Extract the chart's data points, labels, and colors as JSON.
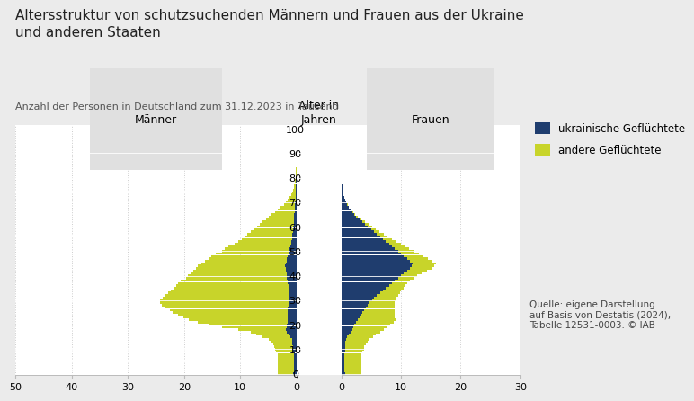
{
  "title": "Altersstruktur von schutzsuchenden Männern und Frauen aus der Ukraine\nund anderen Staaten",
  "subtitle": "Anzahl der Personen in Deutschland zum 31.12.2023 in Tausend",
  "source": "Quelle: eigene Darstellung\nauf Basis von Destatis (2024),\nTabelle 12531-0003. © IAB",
  "legend_ukraine": "ukrainische Geflüchtete",
  "legend_other": "andere Geflüchtete",
  "color_ukraine": "#1f3d6e",
  "color_other": "#c8d42a",
  "label_men": "Männer",
  "label_women": "Frauen",
  "label_age_axis": "Alter in\nJahren",
  "bg_color": "#ebebeb",
  "plot_bg": "#ffffff",
  "ages": [
    0,
    1,
    2,
    3,
    4,
    5,
    6,
    7,
    8,
    9,
    10,
    11,
    12,
    13,
    14,
    15,
    16,
    17,
    18,
    19,
    20,
    21,
    22,
    23,
    24,
    25,
    26,
    27,
    28,
    29,
    30,
    31,
    32,
    33,
    34,
    35,
    36,
    37,
    38,
    39,
    40,
    41,
    42,
    43,
    44,
    45,
    46,
    47,
    48,
    49,
    50,
    51,
    52,
    53,
    54,
    55,
    56,
    57,
    58,
    59,
    60,
    61,
    62,
    63,
    64,
    65,
    66,
    67,
    68,
    69,
    70,
    71,
    72,
    73,
    74,
    75,
    76,
    77,
    78,
    79,
    80,
    81,
    82,
    83,
    84,
    85,
    86,
    87,
    88,
    89,
    90,
    91,
    92,
    93,
    94,
    95,
    96,
    97,
    98,
    99,
    100
  ],
  "men_ukraine": [
    0.6,
    0.5,
    0.5,
    0.5,
    0.5,
    0.5,
    0.5,
    0.5,
    0.5,
    0.6,
    0.6,
    0.6,
    0.7,
    0.7,
    0.8,
    1.1,
    1.4,
    1.7,
    1.9,
    1.8,
    1.7,
    1.6,
    1.6,
    1.6,
    1.6,
    1.5,
    1.5,
    1.5,
    1.4,
    1.3,
    1.3,
    1.3,
    1.3,
    1.3,
    1.3,
    1.3,
    1.4,
    1.5,
    1.6,
    1.7,
    1.8,
    1.8,
    1.9,
    1.9,
    2.0,
    1.9,
    1.8,
    1.7,
    1.6,
    1.4,
    1.3,
    1.2,
    1.1,
    1.0,
    0.9,
    0.8,
    0.75,
    0.7,
    0.65,
    0.6,
    0.55,
    0.5,
    0.48,
    0.45,
    0.4,
    0.38,
    0.35,
    0.3,
    0.28,
    0.25,
    0.22,
    0.2,
    0.18,
    0.15,
    0.13,
    0.11,
    0.1,
    0.08,
    0.07,
    0.06,
    0.05,
    0.04,
    0.03,
    0.025,
    0.02,
    0.015,
    0.01,
    0.008,
    0.005,
    0.003,
    0.002,
    0.001,
    0.001,
    0.001,
    0.001,
    0.001,
    0.001,
    0.001,
    0.001,
    0.001,
    0.001
  ],
  "men_other": [
    2.8,
    2.8,
    2.8,
    2.9,
    2.9,
    2.9,
    2.9,
    2.9,
    2.9,
    3.0,
    3.2,
    3.3,
    3.5,
    3.8,
    4.2,
    5.0,
    5.8,
    6.5,
    8.5,
    11.5,
    14.0,
    16.0,
    17.5,
    18.5,
    19.5,
    20.5,
    21.0,
    22.0,
    22.5,
    23.0,
    23.0,
    22.5,
    22.0,
    21.5,
    21.0,
    20.5,
    20.0,
    19.5,
    19.0,
    18.0,
    17.5,
    17.0,
    16.5,
    16.0,
    15.5,
    15.0,
    14.5,
    14.0,
    13.5,
    13.0,
    12.0,
    11.5,
    11.0,
    10.0,
    9.5,
    9.0,
    8.5,
    8.0,
    7.5,
    7.0,
    6.5,
    6.0,
    5.5,
    5.0,
    4.5,
    4.0,
    3.5,
    3.0,
    2.5,
    2.0,
    1.6,
    1.3,
    1.0,
    0.8,
    0.6,
    0.5,
    0.4,
    0.3,
    0.25,
    0.2,
    0.15,
    0.1,
    0.08,
    0.06,
    0.04,
    0.03,
    0.02,
    0.012,
    0.007,
    0.003,
    0.002,
    0.001,
    0.001,
    0.0,
    0.0,
    0.0,
    0.0,
    0.0,
    0.0,
    0.0,
    0.0
  ],
  "women_ukraine": [
    0.6,
    0.5,
    0.5,
    0.5,
    0.5,
    0.5,
    0.5,
    0.5,
    0.5,
    0.6,
    0.6,
    0.6,
    0.7,
    0.7,
    0.8,
    1.0,
    1.2,
    1.5,
    1.8,
    2.0,
    2.2,
    2.5,
    2.8,
    3.0,
    3.3,
    3.6,
    3.9,
    4.2,
    4.5,
    4.8,
    5.2,
    5.5,
    6.0,
    6.5,
    7.0,
    7.5,
    8.0,
    8.5,
    9.0,
    9.5,
    10.0,
    10.5,
    11.0,
    11.5,
    11.8,
    12.0,
    11.5,
    11.0,
    10.5,
    10.0,
    9.5,
    9.0,
    8.5,
    8.0,
    7.5,
    7.0,
    6.5,
    6.0,
    5.5,
    5.0,
    4.5,
    4.0,
    3.5,
    3.0,
    2.5,
    2.1,
    1.8,
    1.5,
    1.2,
    1.0,
    0.8,
    0.6,
    0.5,
    0.4,
    0.3,
    0.25,
    0.2,
    0.15,
    0.12,
    0.09,
    0.07,
    0.05,
    0.04,
    0.03,
    0.02,
    0.015,
    0.01,
    0.007,
    0.004,
    0.002,
    0.001,
    0.001,
    0.001,
    0.001,
    0.001,
    0.001,
    0.001,
    0.001,
    0.001,
    0.001,
    0.001
  ],
  "women_other": [
    2.8,
    2.8,
    2.8,
    2.9,
    2.9,
    2.9,
    2.9,
    2.9,
    2.9,
    3.0,
    3.2,
    3.3,
    3.5,
    3.8,
    4.0,
    4.3,
    4.6,
    5.0,
    5.3,
    5.7,
    6.0,
    6.3,
    6.3,
    6.0,
    5.7,
    5.4,
    5.0,
    4.8,
    4.5,
    4.2,
    4.0,
    3.8,
    3.5,
    3.3,
    3.0,
    2.9,
    2.7,
    2.6,
    2.5,
    2.6,
    2.7,
    3.0,
    3.3,
    3.6,
    3.8,
    3.9,
    3.8,
    3.5,
    3.2,
    3.0,
    2.7,
    2.4,
    2.2,
    2.0,
    1.7,
    1.5,
    1.3,
    1.1,
    0.9,
    0.8,
    0.65,
    0.55,
    0.45,
    0.37,
    0.3,
    0.24,
    0.19,
    0.14,
    0.11,
    0.08,
    0.06,
    0.05,
    0.035,
    0.025,
    0.018,
    0.013,
    0.009,
    0.006,
    0.004,
    0.003,
    0.002,
    0.001,
    0.001,
    0.0,
    0.0,
    0.0,
    0.0,
    0.0,
    0.0,
    0.0,
    0.0,
    0.0,
    0.0,
    0.0,
    0.0,
    0.0,
    0.0,
    0.0,
    0.0,
    0.0,
    0.0
  ]
}
